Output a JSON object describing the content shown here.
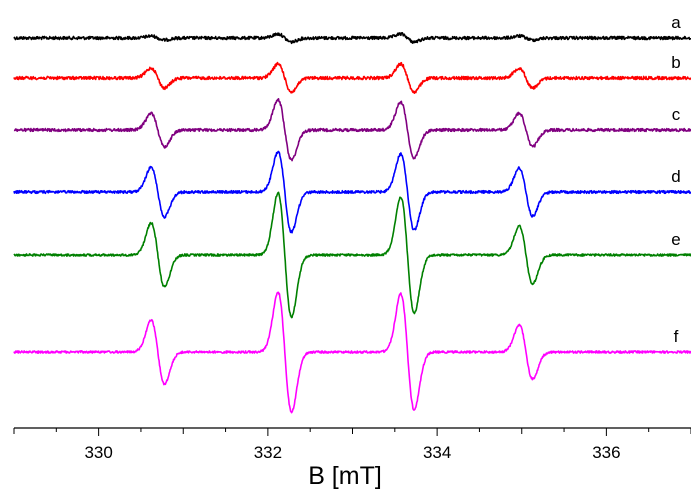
{
  "chart_data": {
    "type": "line",
    "title": "",
    "xlabel": "B [mT]",
    "ylabel": "",
    "xlim": [
      329.0,
      337.0
    ],
    "x_ticks": [
      330,
      332,
      334,
      336
    ],
    "x_tick_labels": [
      "330",
      "332",
      "334",
      "336"
    ],
    "grid": false,
    "legend": "none",
    "lines": [
      330.7,
      332.2,
      333.65,
      335.05
    ],
    "series": [
      {
        "name": "a",
        "color": "#000000",
        "amplitudes": [
          0.05,
          0.1,
          0.1,
          0.05
        ],
        "noise": 1.4
      },
      {
        "name": "b",
        "color": "#ff0000",
        "amplitudes": [
          0.25,
          0.35,
          0.35,
          0.25
        ],
        "noise": 1.4
      },
      {
        "name": "c",
        "color": "#800080",
        "amplitudes": [
          0.42,
          0.75,
          0.7,
          0.42
        ],
        "noise": 1.3
      },
      {
        "name": "d",
        "color": "#0000ff",
        "amplitudes": [
          0.62,
          1.0,
          0.95,
          0.6
        ],
        "noise": 1.2
      },
      {
        "name": "e",
        "color": "#008000",
        "amplitudes": [
          0.8,
          1.55,
          1.45,
          0.72
        ],
        "noise": 1.0
      },
      {
        "name": "f",
        "color": "#ff00ff",
        "amplitudes": [
          0.8,
          1.5,
          1.45,
          0.68
        ],
        "noise": 1.0
      }
    ]
  }
}
